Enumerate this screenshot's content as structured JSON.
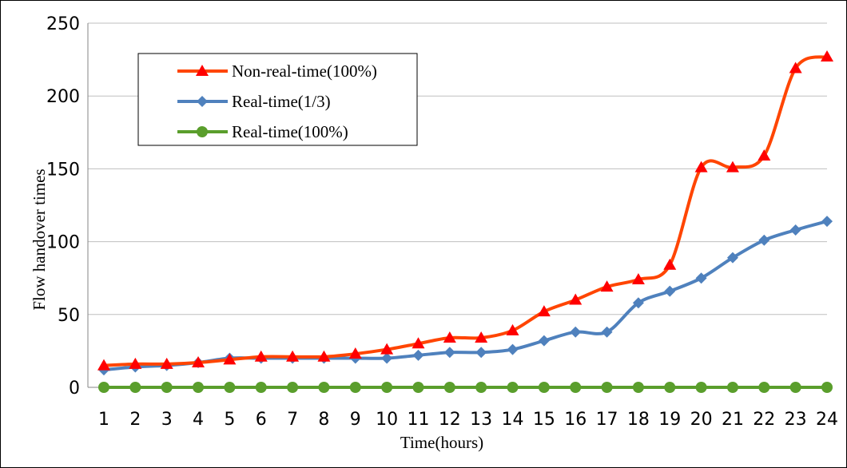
{
  "chart_data": {
    "type": "line",
    "title": "",
    "xlabel": "Time(hours)",
    "ylabel": "Flow handover times",
    "categories": [
      "1",
      "2",
      "3",
      "4",
      "5",
      "6",
      "7",
      "8",
      "9",
      "10",
      "11",
      "12",
      "13",
      "14",
      "15",
      "16",
      "17",
      "18",
      "19",
      "20",
      "21",
      "22",
      "23",
      "24"
    ],
    "ylim": [
      0,
      250
    ],
    "yticks": [
      "0",
      "50",
      "100",
      "150",
      "200",
      "250"
    ],
    "grid": true,
    "legend": "top-left inside",
    "series": [
      {
        "name": "Non-real-time(100%)",
        "color": "#ff4500",
        "marker_color": "#ff0000",
        "marker": "triangle",
        "values": [
          15,
          16,
          16,
          17,
          19,
          21,
          21,
          21,
          23,
          26,
          30,
          34,
          34,
          39,
          52,
          60,
          69,
          74,
          84,
          151,
          151,
          159,
          219,
          227
        ]
      },
      {
        "name": "Real-time(1/3)",
        "color": "#4f81bd",
        "marker_color": "#4f81bd",
        "marker": "diamond",
        "values": [
          12,
          14,
          15,
          17,
          20,
          20,
          20,
          20,
          20,
          20,
          22,
          24,
          24,
          26,
          32,
          38,
          38,
          58,
          66,
          75,
          89,
          101,
          108,
          114
        ]
      },
      {
        "name": "Real-time(100%)",
        "color": "#5a9e2c",
        "marker_color": "#5a9e2c",
        "marker": "circle",
        "values": [
          0,
          0,
          0,
          0,
          0,
          0,
          0,
          0,
          0,
          0,
          0,
          0,
          0,
          0,
          0,
          0,
          0,
          0,
          0,
          0,
          0,
          0,
          0,
          0
        ]
      }
    ]
  }
}
